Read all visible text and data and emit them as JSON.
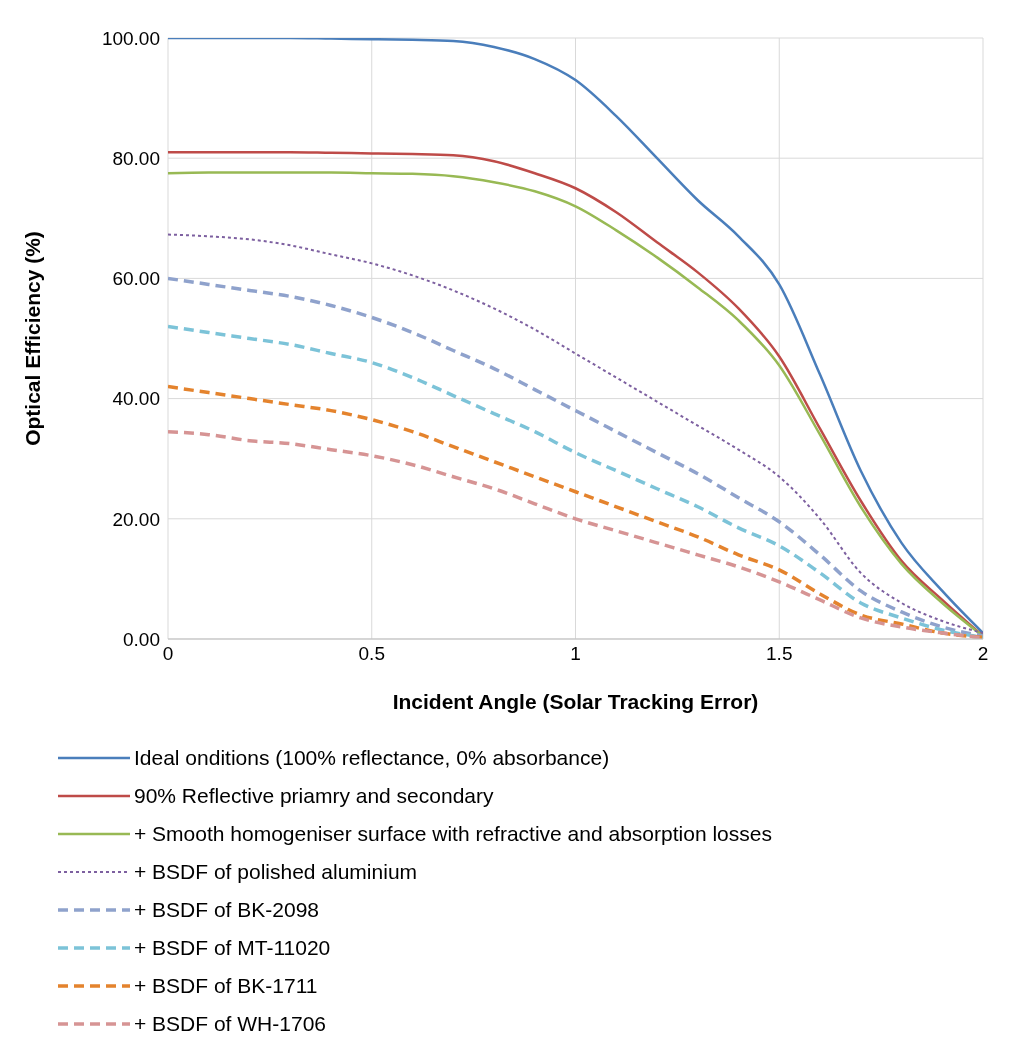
{
  "chart_data": {
    "type": "line",
    "xlabel": "Incident Angle (Solar Tracking Error)",
    "ylabel": "Optical Efficiency (%)",
    "x": [
      0,
      0.1,
      0.2,
      0.3,
      0.4,
      0.5,
      0.6,
      0.7,
      0.8,
      0.9,
      1.0,
      1.1,
      1.2,
      1.3,
      1.4,
      1.5,
      1.6,
      1.7,
      1.8,
      1.9,
      2.0
    ],
    "xlim": [
      0,
      2
    ],
    "xticks": [
      0,
      0.5,
      1,
      1.5,
      2
    ],
    "ylim": [
      0,
      100
    ],
    "yticks": [
      {
        "value": 0,
        "label": "0.00"
      },
      {
        "value": 20,
        "label": "20.00"
      },
      {
        "value": 40,
        "label": "40.00"
      },
      {
        "value": 60,
        "label": "60.00"
      },
      {
        "value": 80,
        "label": "80.00"
      },
      {
        "value": 100,
        "label": "100.00"
      }
    ],
    "grid": true,
    "legend": "bottom",
    "marker": "none",
    "series": [
      {
        "name": "Ideal onditions (100% reflectance, 0% absorbance)",
        "color": "#4a7ebb",
        "line_style": "solid",
        "values": [
          100,
          100,
          100,
          100,
          99.9,
          99.8,
          99.7,
          99.5,
          98.5,
          96.5,
          93,
          87,
          80,
          73,
          67,
          59,
          44,
          28,
          16,
          8,
          1
        ]
      },
      {
        "name": "90% Reflective priamry and secondary",
        "color": "#be4b48",
        "line_style": "solid",
        "values": [
          81,
          81,
          81,
          81,
          80.9,
          80.8,
          80.7,
          80.5,
          79.5,
          77.5,
          75,
          71,
          66,
          61,
          55,
          47,
          35,
          23,
          13,
          6.5,
          0.5
        ]
      },
      {
        "name": "+ Smooth homogeniser surface with refractive and absorption losses",
        "color": "#98b954",
        "line_style": "solid",
        "values": [
          77.5,
          77.6,
          77.6,
          77.6,
          77.6,
          77.5,
          77.4,
          77,
          76,
          74.5,
          72,
          68,
          63.5,
          58.5,
          53,
          45.5,
          34,
          22,
          12.5,
          6,
          0.5
        ]
      },
      {
        "name": "+ BSDF of polished aluminium",
        "color": "#7d60a0",
        "line_style": "dotted",
        "values": [
          67.3,
          67,
          66.5,
          65.5,
          64,
          62.5,
          60.5,
          58,
          55,
          51.5,
          47.5,
          43.5,
          39.5,
          35.5,
          31.5,
          27,
          20,
          11,
          6,
          3,
          1
        ]
      },
      {
        "name": "+ BSDF of BK-2098",
        "color": "#8fa2cc",
        "line_style": "dashed",
        "values": [
          60,
          59,
          58,
          57,
          55.5,
          53.5,
          51,
          48,
          45,
          41.5,
          38,
          34.5,
          31,
          27.5,
          23.5,
          19.5,
          14,
          8,
          4.5,
          2,
          0.5
        ]
      },
      {
        "name": "+ BSDF of MT-11020",
        "color": "#7cc3d8",
        "line_style": "dashed",
        "values": [
          52,
          51,
          50,
          49,
          47.5,
          46,
          43.5,
          40.5,
          37.5,
          34.5,
          31,
          28,
          25,
          22,
          18.5,
          15.5,
          11,
          6,
          3.5,
          1.5,
          0.3
        ]
      },
      {
        "name": "+ BSDF of BK-1711",
        "color": "#e4832d",
        "line_style": "dashed",
        "values": [
          42,
          41,
          40,
          39,
          38,
          36.5,
          34.5,
          32,
          29.5,
          27,
          24.5,
          22,
          19.5,
          17,
          14,
          11.5,
          7.5,
          4,
          2.5,
          1,
          0.3
        ]
      },
      {
        "name": "+ BSDF of WH-1706",
        "color": "#d69494",
        "line_style": "dashed",
        "values": [
          34.5,
          34,
          33,
          32.5,
          31.5,
          30.5,
          29,
          27,
          25,
          22.5,
          20,
          18,
          16,
          14,
          12,
          9.5,
          6.5,
          3.5,
          2,
          1,
          0.2
        ]
      }
    ]
  }
}
